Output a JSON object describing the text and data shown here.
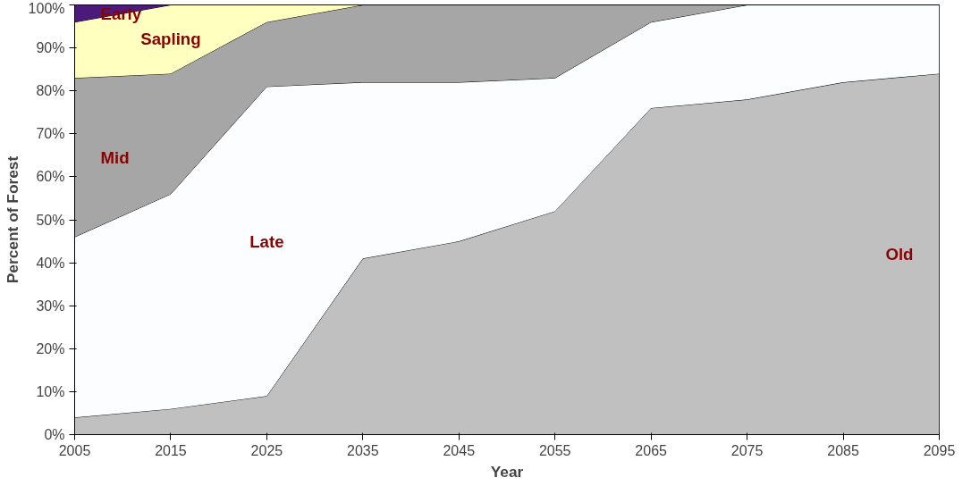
{
  "chart_data": {
    "type": "area",
    "stacked": true,
    "xlabel": "Year",
    "ylabel": "Percent of Forest",
    "x": [
      2005,
      2015,
      2025,
      2035,
      2045,
      2055,
      2065,
      2075,
      2085,
      2095
    ],
    "series": [
      {
        "name": "Old",
        "color": "#c0c0c0",
        "values": [
          4,
          6,
          9,
          41,
          45,
          52,
          76,
          78,
          82,
          84
        ]
      },
      {
        "name": "Late",
        "color": "#fbfdfe",
        "values": [
          42,
          50,
          72,
          41,
          37,
          31,
          20,
          22,
          18,
          16
        ]
      },
      {
        "name": "Mid",
        "color": "#a6a6a6",
        "values": [
          37,
          28,
          15,
          18,
          18,
          17,
          4,
          0,
          0,
          0
        ]
      },
      {
        "name": "Sapling",
        "color": "#ffffc0",
        "values": [
          13,
          16,
          4,
          0,
          0,
          0,
          0,
          0,
          0,
          0
        ]
      },
      {
        "name": "Early",
        "color": "#4b1a7a",
        "values": [
          4,
          0,
          0,
          0,
          0,
          0,
          0,
          0,
          0,
          0
        ]
      }
    ],
    "xlim": [
      2005,
      2095
    ],
    "ylim": [
      0,
      100
    ],
    "xticks": [
      2005,
      2015,
      2025,
      2035,
      2045,
      2055,
      2065,
      2075,
      2085,
      2095
    ],
    "yticks": [
      {
        "value": 0,
        "label": "0%"
      },
      {
        "value": 10,
        "label": "10%"
      },
      {
        "value": 20,
        "label": "20%"
      },
      {
        "value": 30,
        "label": "30%"
      },
      {
        "value": 40,
        "label": "40%"
      },
      {
        "value": 50,
        "label": "50%"
      },
      {
        "value": 60,
        "label": "60%"
      },
      {
        "value": 70,
        "label": "70%"
      },
      {
        "value": 80,
        "label": "80%"
      },
      {
        "value": 90,
        "label": "90%"
      },
      {
        "value": 100,
        "label": "100%"
      }
    ],
    "grid": false
  }
}
